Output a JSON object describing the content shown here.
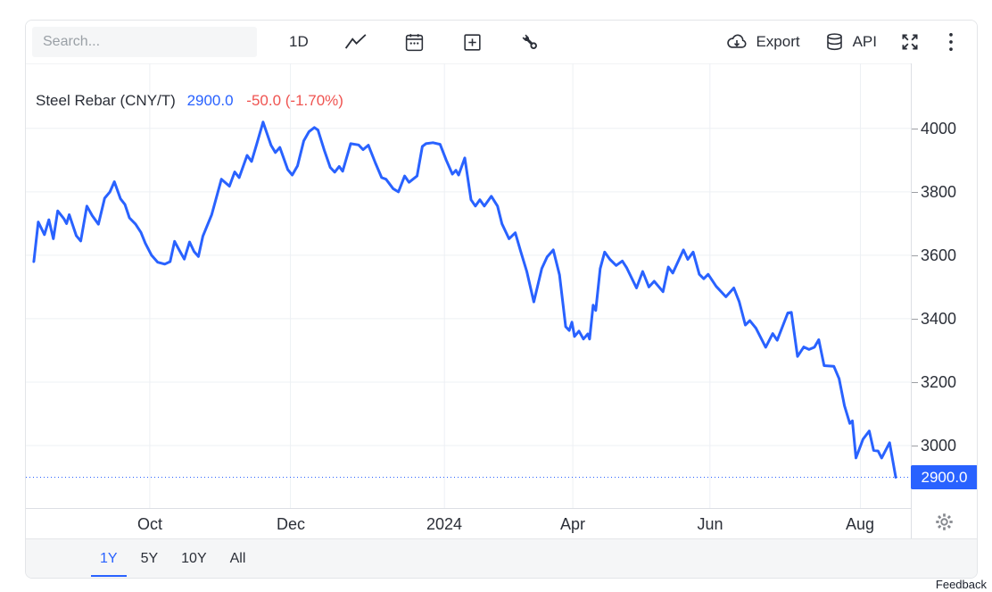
{
  "toolbar": {
    "search_placeholder": "Search...",
    "interval_label": "1D",
    "export_label": "Export",
    "api_label": "API",
    "icons": [
      "line-chart-icon",
      "calendar-icon",
      "add-box-icon",
      "wrench-icon",
      "cloud-download-icon",
      "database-icon",
      "expand-icon",
      "kebab-menu-icon"
    ]
  },
  "chart": {
    "title": "Steel Rebar (CNY/T)",
    "price": "2900.0",
    "change": "-50.0 (-1.70%)",
    "price_badge": "2900.0"
  },
  "chart_data": {
    "type": "line",
    "title": "Steel Rebar (CNY/T)",
    "unit": "CNY/T",
    "timeframe": "1Y",
    "last": 2900.0,
    "change": -50.0,
    "change_pct": -1.7,
    "current_price": 2900.0,
    "colors": {
      "line": "#2962FF",
      "grid": "#edf0f4",
      "negative": "#EF5350",
      "badge": "#2962FF"
    },
    "y_ticks": [
      4000,
      3800,
      3600,
      3400,
      3200,
      3000
    ],
    "y_axis": {
      "v_top": 4205,
      "v_bottom": 2803
    },
    "x_ticks": [
      {
        "label": "Oct",
        "t": 0.14
      },
      {
        "label": "Dec",
        "t": 0.299
      },
      {
        "label": "2024",
        "t": 0.473
      },
      {
        "label": "Apr",
        "t": 0.618
      },
      {
        "label": "Jun",
        "t": 0.773
      },
      {
        "label": "Aug",
        "t": 0.943
      }
    ],
    "series": [
      {
        "name": "Steel Rebar (CNY/T)",
        "points": [
          [
            0.009,
            3580
          ],
          [
            0.014,
            3705
          ],
          [
            0.021,
            3665
          ],
          [
            0.026,
            3712
          ],
          [
            0.031,
            3652
          ],
          [
            0.036,
            3740
          ],
          [
            0.043,
            3715
          ],
          [
            0.046,
            3700
          ],
          [
            0.049,
            3728
          ],
          [
            0.057,
            3662
          ],
          [
            0.062,
            3645
          ],
          [
            0.069,
            3755
          ],
          [
            0.075,
            3725
          ],
          [
            0.082,
            3698
          ],
          [
            0.089,
            3780
          ],
          [
            0.095,
            3800
          ],
          [
            0.1,
            3832
          ],
          [
            0.107,
            3778
          ],
          [
            0.112,
            3760
          ],
          [
            0.117,
            3718
          ],
          [
            0.124,
            3698
          ],
          [
            0.13,
            3672
          ],
          [
            0.135,
            3638
          ],
          [
            0.142,
            3600
          ],
          [
            0.149,
            3578
          ],
          [
            0.157,
            3572
          ],
          [
            0.163,
            3580
          ],
          [
            0.168,
            3644
          ],
          [
            0.173,
            3618
          ],
          [
            0.179,
            3588
          ],
          [
            0.185,
            3642
          ],
          [
            0.19,
            3612
          ],
          [
            0.195,
            3596
          ],
          [
            0.2,
            3660
          ],
          [
            0.21,
            3728
          ],
          [
            0.221,
            3840
          ],
          [
            0.23,
            3818
          ],
          [
            0.236,
            3863
          ],
          [
            0.241,
            3845
          ],
          [
            0.25,
            3915
          ],
          [
            0.255,
            3896
          ],
          [
            0.261,
            3952
          ],
          [
            0.268,
            4020
          ],
          [
            0.277,
            3947
          ],
          [
            0.282,
            3924
          ],
          [
            0.287,
            3940
          ],
          [
            0.296,
            3870
          ],
          [
            0.301,
            3853
          ],
          [
            0.307,
            3882
          ],
          [
            0.314,
            3961
          ],
          [
            0.32,
            3990
          ],
          [
            0.326,
            4003
          ],
          [
            0.33,
            3995
          ],
          [
            0.337,
            3933
          ],
          [
            0.344,
            3877
          ],
          [
            0.349,
            3862
          ],
          [
            0.354,
            3880
          ],
          [
            0.358,
            3865
          ],
          [
            0.367,
            3952
          ],
          [
            0.376,
            3948
          ],
          [
            0.381,
            3933
          ],
          [
            0.387,
            3947
          ],
          [
            0.395,
            3891
          ],
          [
            0.402,
            3845
          ],
          [
            0.407,
            3840
          ],
          [
            0.415,
            3810
          ],
          [
            0.421,
            3800
          ],
          [
            0.428,
            3850
          ],
          [
            0.433,
            3830
          ],
          [
            0.442,
            3850
          ],
          [
            0.448,
            3943
          ],
          [
            0.452,
            3952
          ],
          [
            0.46,
            3955
          ],
          [
            0.468,
            3950
          ],
          [
            0.475,
            3900
          ],
          [
            0.482,
            3856
          ],
          [
            0.486,
            3868
          ],
          [
            0.489,
            3853
          ],
          [
            0.496,
            3907
          ],
          [
            0.503,
            3775
          ],
          [
            0.508,
            3755
          ],
          [
            0.513,
            3775
          ],
          [
            0.518,
            3755
          ],
          [
            0.526,
            3786
          ],
          [
            0.533,
            3755
          ],
          [
            0.538,
            3699
          ],
          [
            0.546,
            3652
          ],
          [
            0.553,
            3671
          ],
          [
            0.559,
            3614
          ],
          [
            0.566,
            3549
          ],
          [
            0.574,
            3453
          ],
          [
            0.583,
            3558
          ],
          [
            0.589,
            3595
          ],
          [
            0.596,
            3617
          ],
          [
            0.603,
            3538
          ],
          [
            0.61,
            3375
          ],
          [
            0.614,
            3363
          ],
          [
            0.617,
            3389
          ],
          [
            0.62,
            3344
          ],
          [
            0.625,
            3361
          ],
          [
            0.63,
            3336
          ],
          [
            0.635,
            3352
          ],
          [
            0.637,
            3336
          ],
          [
            0.641,
            3443
          ],
          [
            0.644,
            3426
          ],
          [
            0.649,
            3558
          ],
          [
            0.654,
            3610
          ],
          [
            0.66,
            3587
          ],
          [
            0.667,
            3568
          ],
          [
            0.674,
            3582
          ],
          [
            0.679,
            3560
          ],
          [
            0.69,
            3497
          ],
          [
            0.697,
            3549
          ],
          [
            0.704,
            3500
          ],
          [
            0.71,
            3518
          ],
          [
            0.72,
            3485
          ],
          [
            0.726,
            3563
          ],
          [
            0.731,
            3544
          ],
          [
            0.743,
            3617
          ],
          [
            0.748,
            3587
          ],
          [
            0.754,
            3610
          ],
          [
            0.761,
            3540
          ],
          [
            0.766,
            3526
          ],
          [
            0.771,
            3540
          ],
          [
            0.78,
            3502
          ],
          [
            0.791,
            3469
          ],
          [
            0.8,
            3497
          ],
          [
            0.806,
            3454
          ],
          [
            0.813,
            3380
          ],
          [
            0.818,
            3394
          ],
          [
            0.825,
            3370
          ],
          [
            0.836,
            3310
          ],
          [
            0.844,
            3353
          ],
          [
            0.849,
            3332
          ],
          [
            0.861,
            3418
          ],
          [
            0.865,
            3420
          ],
          [
            0.872,
            3281
          ],
          [
            0.879,
            3311
          ],
          [
            0.885,
            3303
          ],
          [
            0.891,
            3310
          ],
          [
            0.896,
            3334
          ],
          [
            0.902,
            3252
          ],
          [
            0.913,
            3250
          ],
          [
            0.919,
            3211
          ],
          [
            0.925,
            3126
          ],
          [
            0.931,
            3070
          ],
          [
            0.934,
            3078
          ],
          [
            0.938,
            2961
          ],
          [
            0.946,
            3020
          ],
          [
            0.953,
            3046
          ],
          [
            0.958,
            2985
          ],
          [
            0.963,
            2983
          ],
          [
            0.967,
            2961
          ],
          [
            0.976,
            3009
          ],
          [
            0.983,
            2900
          ]
        ]
      }
    ]
  },
  "range_tabs": [
    {
      "label": "1Y",
      "active": true
    },
    {
      "label": "5Y",
      "active": false
    },
    {
      "label": "10Y",
      "active": false
    },
    {
      "label": "All",
      "active": false
    }
  ],
  "footer": {
    "feedback": "Feedback"
  }
}
